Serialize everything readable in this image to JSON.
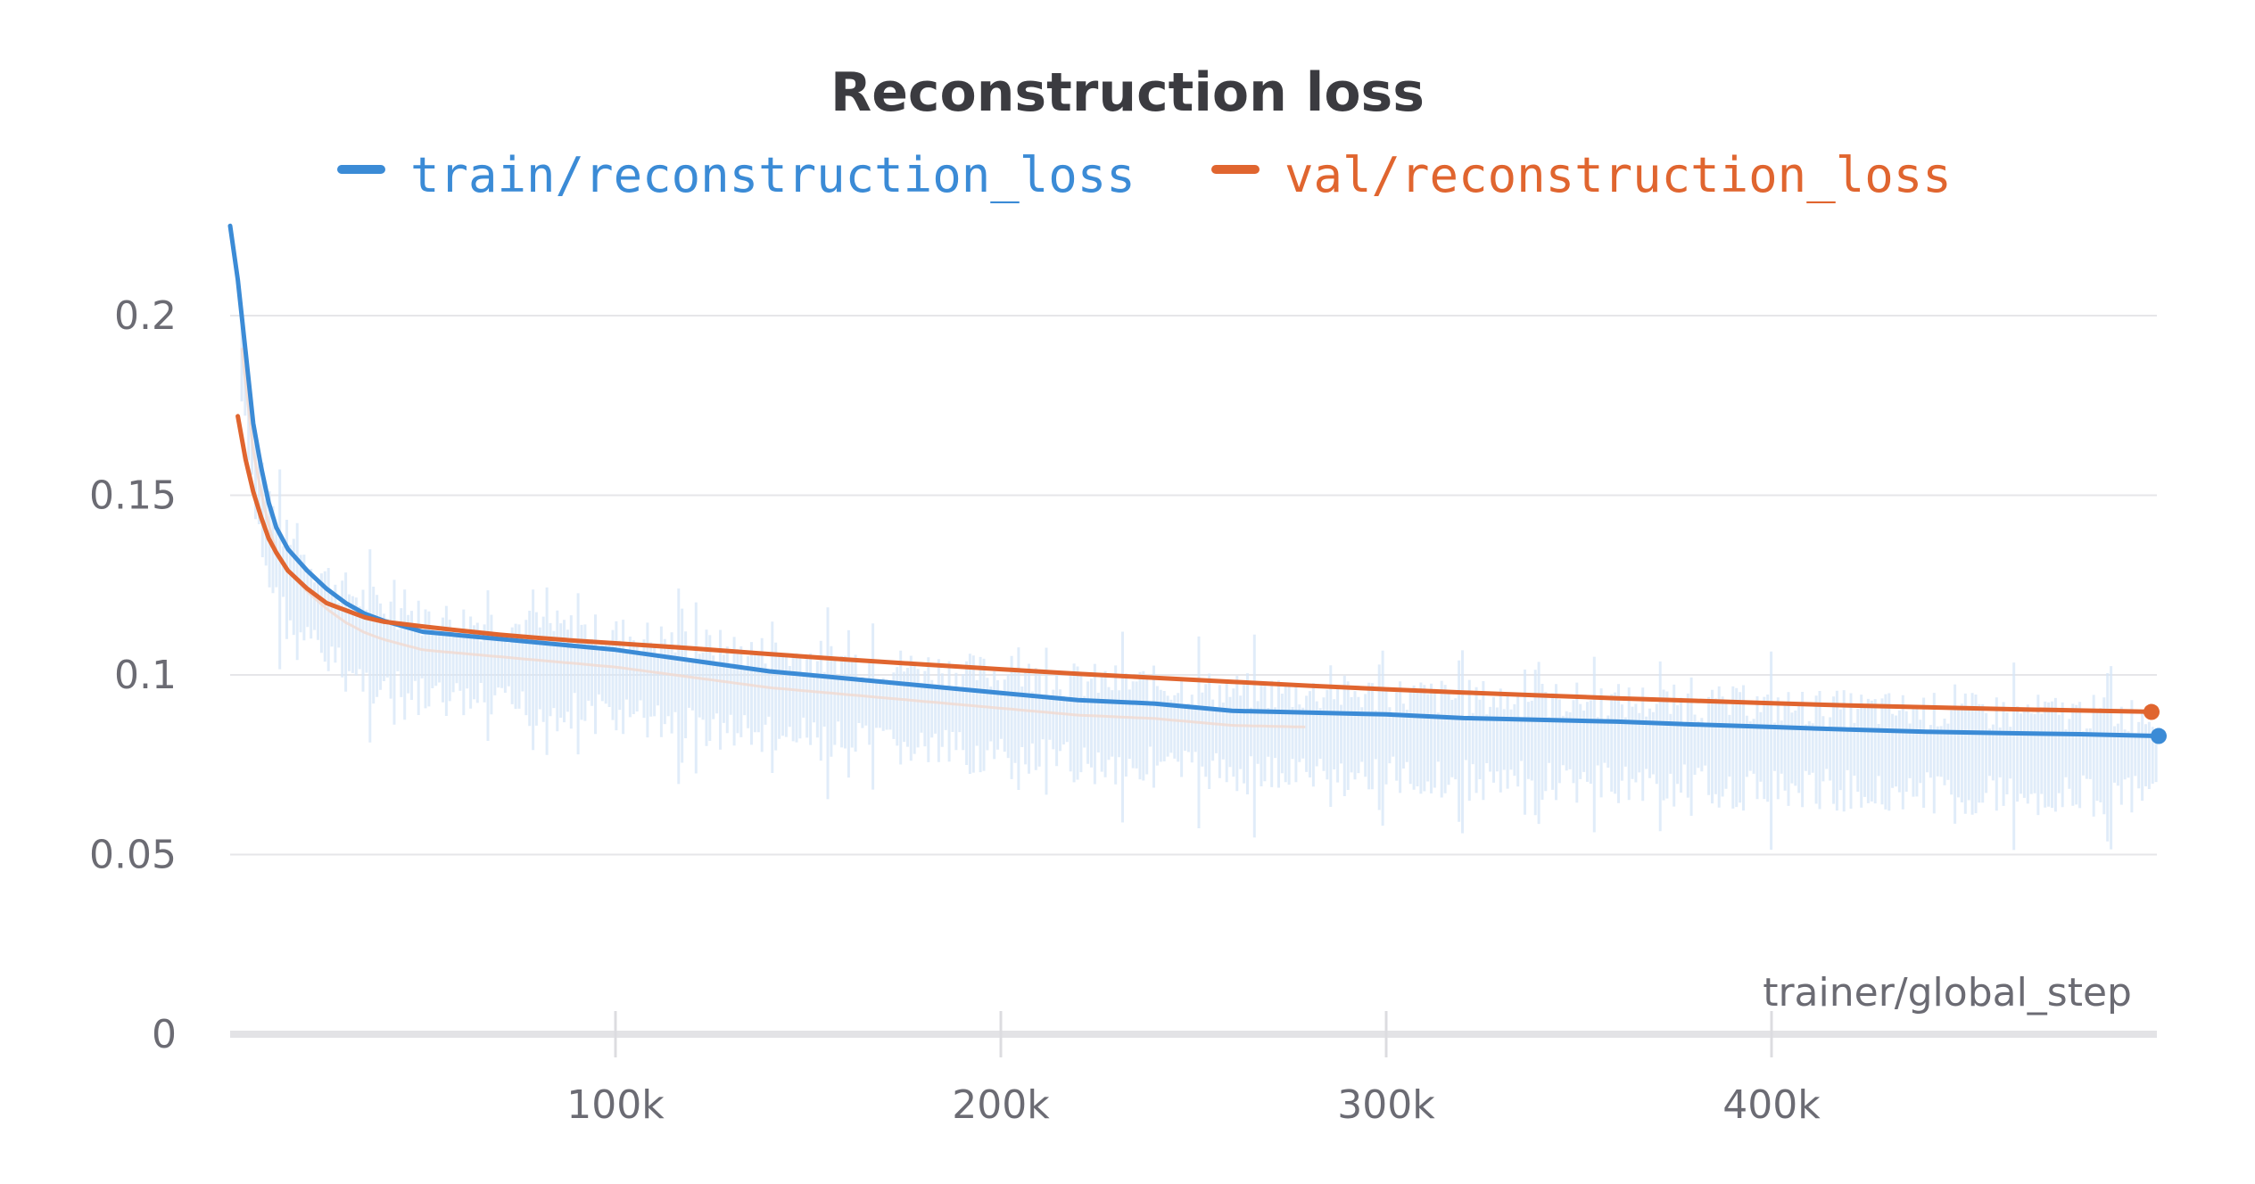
{
  "chart_data": {
    "type": "line",
    "title": "Reconstruction loss",
    "xlabel": "trainer/global_step",
    "ylabel": "",
    "xlim": [
      0,
      500000
    ],
    "ylim": [
      0,
      0.22
    ],
    "x_ticks": [
      100000,
      200000,
      300000,
      400000
    ],
    "x_tick_labels": [
      "100k",
      "200k",
      "300k",
      "400k"
    ],
    "y_ticks": [
      0,
      0.05,
      0.1,
      0.15,
      0.2
    ],
    "y_tick_labels": [
      "0",
      "0.05",
      "0.1",
      "0.15",
      "0.2"
    ],
    "grid": true,
    "legend_position": "top-center",
    "series": [
      {
        "name": "train/reconstruction_loss",
        "color": "#3b8bd6",
        "x": [
          0,
          2000,
          4000,
          6000,
          8000,
          10000,
          12000,
          15000,
          20000,
          25000,
          30000,
          35000,
          40000,
          50000,
          60000,
          70000,
          80000,
          90000,
          100000,
          120000,
          140000,
          160000,
          180000,
          200000,
          220000,
          240000,
          260000,
          280000,
          300000,
          320000,
          340000,
          360000,
          380000,
          400000,
          420000,
          440000,
          460000,
          480000,
          500000
        ],
        "values": [
          0.225,
          0.21,
          0.19,
          0.17,
          0.158,
          0.148,
          0.141,
          0.135,
          0.129,
          0.124,
          0.12,
          0.117,
          0.115,
          0.112,
          0.111,
          0.11,
          0.109,
          0.108,
          0.107,
          0.104,
          0.101,
          0.099,
          0.097,
          0.095,
          0.093,
          0.092,
          0.09,
          0.0895,
          0.089,
          0.088,
          0.0875,
          0.087,
          0.0862,
          0.0855,
          0.0848,
          0.0842,
          0.0838,
          0.0835,
          0.083
        ]
      },
      {
        "name": "val/reconstruction_loss",
        "color": "#e0652f",
        "x": [
          2000,
          4000,
          6000,
          8000,
          10000,
          12000,
          15000,
          20000,
          25000,
          30000,
          35000,
          40000,
          50000,
          60000,
          70000,
          80000,
          90000,
          100000,
          120000,
          140000,
          160000,
          180000,
          200000,
          220000,
          240000,
          260000,
          280000,
          300000,
          320000,
          340000,
          360000,
          380000,
          400000,
          420000,
          440000,
          460000,
          480000,
          500000
        ],
        "values": [
          0.172,
          0.16,
          0.151,
          0.144,
          0.138,
          0.134,
          0.129,
          0.124,
          0.12,
          0.118,
          0.116,
          0.1148,
          0.1135,
          0.1123,
          0.1112,
          0.1103,
          0.1095,
          0.1088,
          0.1074,
          0.1058,
          0.1043,
          0.1029,
          0.1016,
          0.1003,
          0.0992,
          0.0981,
          0.097,
          0.096,
          0.0951,
          0.0943,
          0.0935,
          0.0928,
          0.0921,
          0.0915,
          0.091,
          0.0905,
          0.0901,
          0.0897
        ]
      }
    ]
  }
}
